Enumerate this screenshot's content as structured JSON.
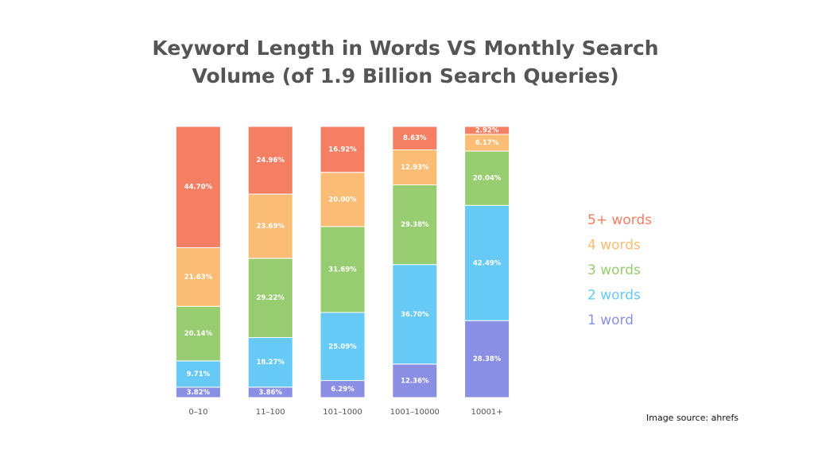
{
  "chart_data": {
    "type": "stacked-bar",
    "title": [
      "Keyword Length in Words VS Monthly Search",
      "Volume (of 1.9 Billion Search Queries)"
    ],
    "categories": [
      "0–10",
      "11–100",
      "101–1000",
      "1001–10000",
      "10001+"
    ],
    "ylim": [
      0,
      100
    ],
    "series": [
      {
        "name": "1 word",
        "color": "#8b8fe3",
        "values": [
          3.82,
          3.86,
          6.29,
          12.36,
          28.38
        ],
        "value_labels": [
          "3.82%",
          "3.86%",
          "6.29%",
          "12.36%",
          "28.38%"
        ]
      },
      {
        "name": "2 words",
        "color": "#66c9f6",
        "values": [
          9.71,
          18.27,
          25.09,
          36.7,
          42.49
        ],
        "value_labels": [
          "9.71%",
          "18.27%",
          "25.09%",
          "36.70%",
          "42.49%"
        ]
      },
      {
        "name": "3 words",
        "color": "#97cd70",
        "values": [
          20.14,
          29.22,
          31.69,
          29.38,
          20.04
        ],
        "value_labels": [
          "20.14%",
          "29.22%",
          "31.69%",
          "29.38%",
          "20.04%"
        ]
      },
      {
        "name": "4 words",
        "color": "#fbbd75",
        "values": [
          21.63,
          23.69,
          20.0,
          12.93,
          6.17
        ],
        "value_labels": [
          "21.63%",
          "23.69%",
          "20.00%",
          "12.93%",
          "6.17%"
        ]
      },
      {
        "name": "5+ words",
        "color": "#f47f63",
        "values": [
          44.7,
          24.96,
          16.92,
          8.63,
          2.92
        ],
        "value_labels": [
          "44.70%",
          "24.96%",
          "16.92%",
          "8.63%",
          "2.92%"
        ]
      }
    ]
  },
  "source": "Image source: ahrefs"
}
